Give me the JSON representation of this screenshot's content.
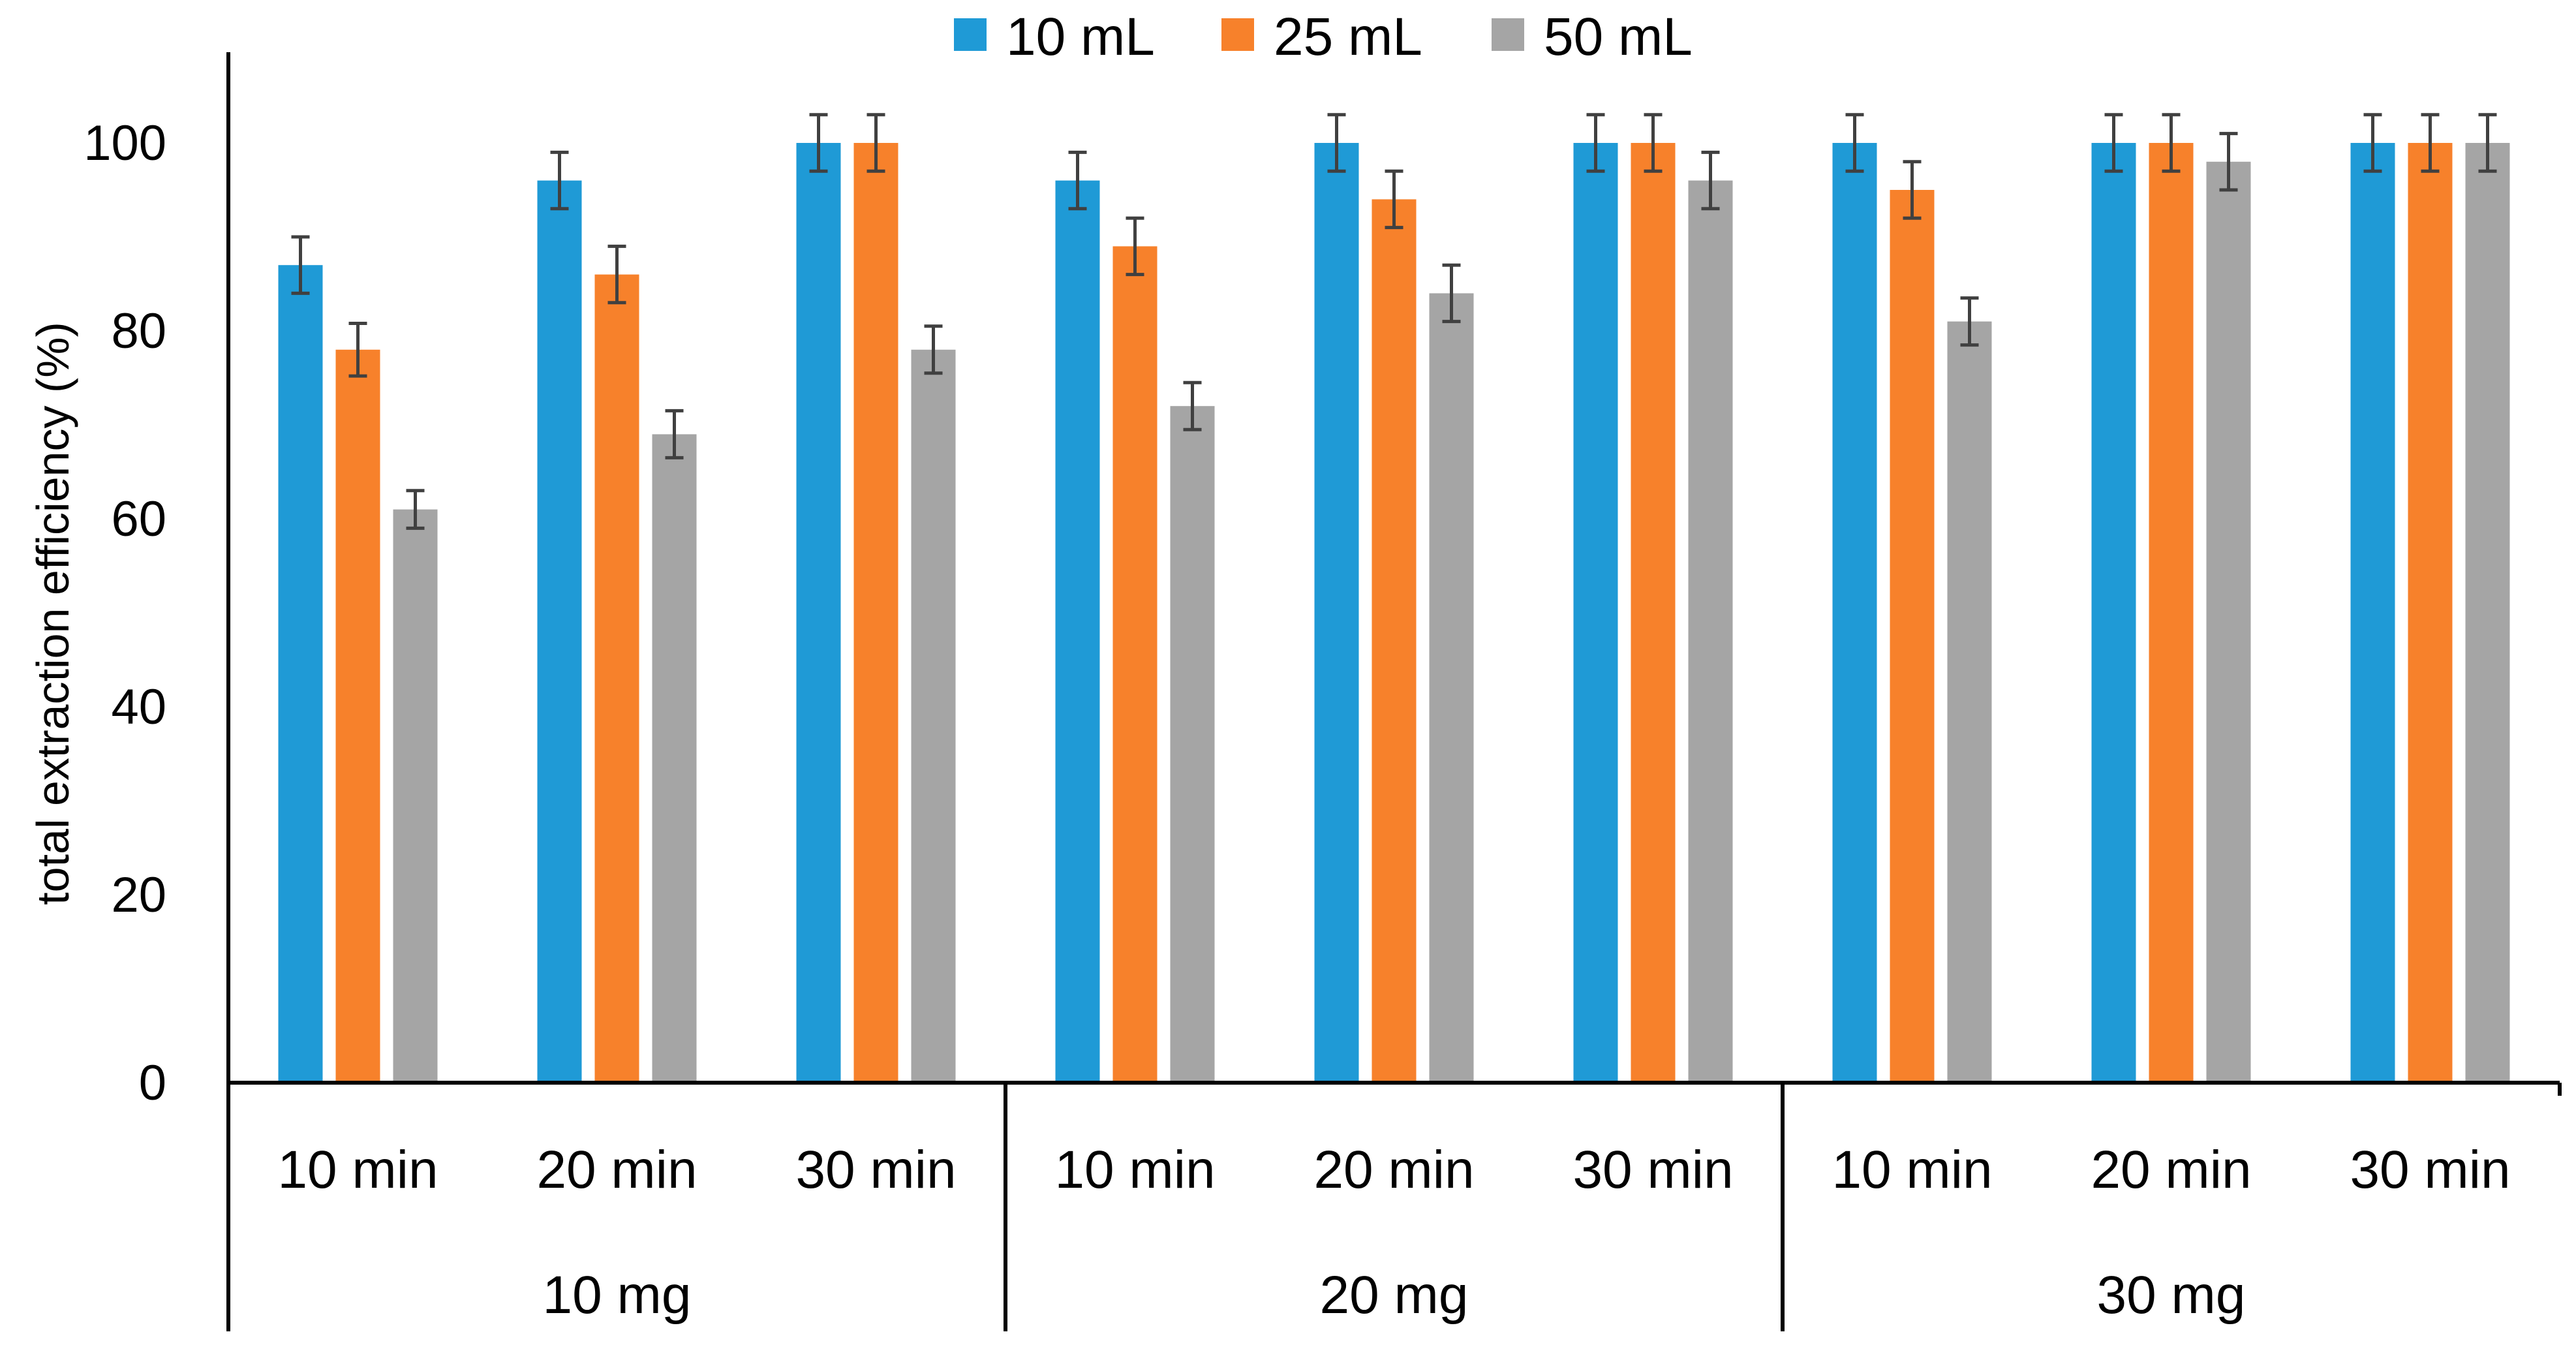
{
  "chart_data": {
    "type": "bar",
    "title": "",
    "xlabel": "",
    "ylabel": "total extraction efficiency (%)",
    "ylim": [
      0,
      100
    ],
    "yticks": [
      "0",
      "20",
      "40",
      "60",
      "80",
      "100"
    ],
    "grid": false,
    "legend_position": "top-center",
    "groups": [
      "10 mg",
      "20 mg",
      "30 mg"
    ],
    "categories": [
      "10 min",
      "20 min",
      "30 min",
      "10 min",
      "20 min",
      "30 min",
      "10 min",
      "20 min",
      "30 min"
    ],
    "series": [
      {
        "name": "10 mL",
        "color": "#1f9ad6",
        "values": [
          87,
          96,
          100,
          96,
          100,
          100,
          100,
          100,
          100
        ],
        "errors": [
          3,
          3,
          3,
          3,
          3,
          3,
          3,
          3,
          3
        ]
      },
      {
        "name": "25 mL",
        "color": "#f7812b",
        "values": [
          78,
          86,
          100,
          89,
          94,
          100,
          95,
          100,
          100
        ],
        "errors": [
          2.8,
          3,
          3,
          3,
          3,
          3,
          3,
          3,
          3
        ]
      },
      {
        "name": "50 mL",
        "color": "#a5a5a5",
        "values": [
          61,
          69,
          78,
          72,
          84,
          96,
          81,
          98,
          100
        ],
        "errors": [
          2,
          2.5,
          2.5,
          2.5,
          3,
          3,
          2.5,
          3,
          3
        ]
      }
    ]
  }
}
